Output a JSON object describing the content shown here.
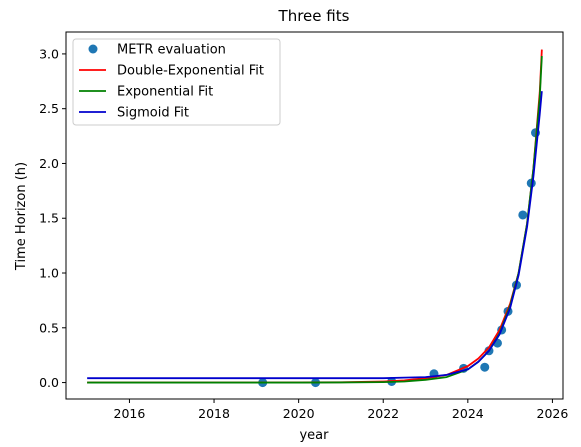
{
  "chart_data": {
    "type": "line",
    "title": "Three fits",
    "xlabel": "year",
    "ylabel": "Time Horizon (h)",
    "xlim": [
      2014.5,
      2026.25
    ],
    "ylim": [
      -0.15,
      3.2
    ],
    "xticks": [
      2016,
      2018,
      2020,
      2022,
      2024,
      2026
    ],
    "yticks": [
      0.0,
      0.5,
      1.0,
      1.5,
      2.0,
      2.5,
      3.0
    ],
    "xtick_labels": [
      "2016",
      "2018",
      "2020",
      "2022",
      "2024",
      "2026"
    ],
    "ytick_labels": [
      "0.0",
      "0.5",
      "1.0",
      "1.5",
      "2.0",
      "2.5",
      "3.0"
    ],
    "grid": false,
    "legend_position": "top-left",
    "scatter": {
      "name": "METR evaluation",
      "color": "#1f77b4",
      "points": [
        {
          "x": 2019.15,
          "y": 0.0
        },
        {
          "x": 2020.4,
          "y": 0.0
        },
        {
          "x": 2022.2,
          "y": 0.01
        },
        {
          "x": 2023.2,
          "y": 0.08
        },
        {
          "x": 2023.9,
          "y": 0.13
        },
        {
          "x": 2024.4,
          "y": 0.14
        },
        {
          "x": 2024.5,
          "y": 0.29
        },
        {
          "x": 2024.7,
          "y": 0.36
        },
        {
          "x": 2024.8,
          "y": 0.48
        },
        {
          "x": 2024.95,
          "y": 0.65
        },
        {
          "x": 2025.15,
          "y": 0.89
        },
        {
          "x": 2025.3,
          "y": 1.53
        },
        {
          "x": 2025.5,
          "y": 1.82
        },
        {
          "x": 2025.6,
          "y": 2.28
        }
      ]
    },
    "series": [
      {
        "name": "Double-Exponential Fit",
        "color": "#ff0000",
        "x": [
          2015.0,
          2016.0,
          2017.0,
          2018.0,
          2019.0,
          2020.0,
          2021.0,
          2022.0,
          2022.5,
          2023.0,
          2023.5,
          2024.0,
          2024.25,
          2024.5,
          2024.75,
          2025.0,
          2025.2,
          2025.4,
          2025.55,
          2025.7,
          2025.75
        ],
        "y": [
          0.0,
          0.0,
          0.0,
          0.0,
          0.0,
          0.001,
          0.003,
          0.01,
          0.02,
          0.04,
          0.07,
          0.15,
          0.22,
          0.32,
          0.48,
          0.72,
          1.0,
          1.45,
          1.95,
          2.65,
          3.04
        ]
      },
      {
        "name": "Exponential Fit",
        "color": "#008000",
        "x": [
          2015.0,
          2016.0,
          2017.0,
          2018.0,
          2019.0,
          2020.0,
          2021.0,
          2022.0,
          2022.5,
          2023.0,
          2023.5,
          2024.0,
          2024.25,
          2024.5,
          2024.75,
          2025.0,
          2025.2,
          2025.4,
          2025.55,
          2025.7,
          2025.75
        ],
        "y": [
          0.0,
          0.0,
          0.0,
          0.0,
          0.0,
          0.0,
          0.001,
          0.004,
          0.01,
          0.025,
          0.05,
          0.12,
          0.19,
          0.29,
          0.45,
          0.7,
          1.0,
          1.45,
          1.95,
          2.6,
          2.98
        ]
      },
      {
        "name": "Sigmoid Fit",
        "color": "#0000cd",
        "x": [
          2015.0,
          2016.0,
          2017.0,
          2018.0,
          2019.0,
          2020.0,
          2021.0,
          2022.0,
          2022.5,
          2023.0,
          2023.5,
          2024.0,
          2024.25,
          2024.5,
          2024.75,
          2025.0,
          2025.2,
          2025.4,
          2025.55,
          2025.7,
          2025.75
        ],
        "y": [
          0.04,
          0.04,
          0.04,
          0.04,
          0.04,
          0.04,
          0.04,
          0.04,
          0.045,
          0.05,
          0.07,
          0.12,
          0.19,
          0.29,
          0.44,
          0.68,
          0.98,
          1.42,
          1.88,
          2.45,
          2.66
        ]
      }
    ]
  }
}
